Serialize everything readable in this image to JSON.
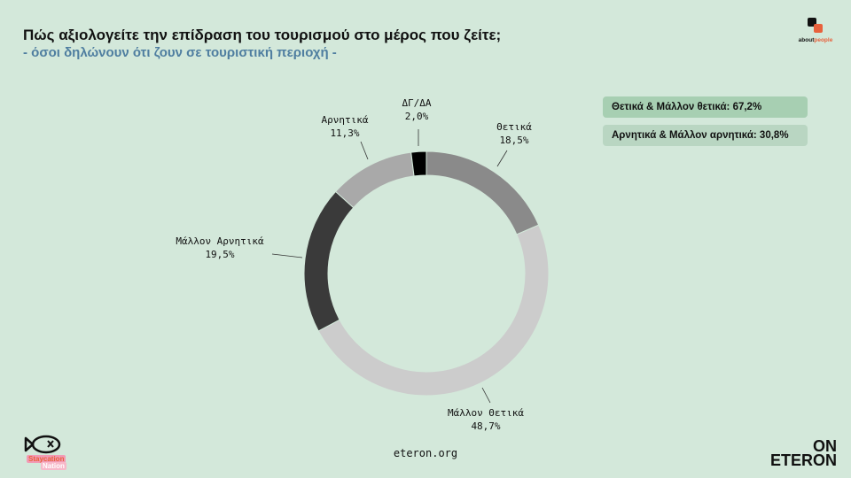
{
  "header": {
    "title": "Πώς αξιολογείτε την επίδραση του τουρισμού στο μέρος που ζείτε;",
    "subtitle": "- όσοι δηλώνουν ότι ζουν σε τουριστική περιοχή -"
  },
  "logos": {
    "aboutpeople_a": "about",
    "aboutpeople_b": "people",
    "on": "ON",
    "eteron": "ETERON",
    "staycation": "Staycation",
    "nation": "Nation"
  },
  "summary": {
    "positive": "Θετικά & Μάλλον θετικά: 67,2%",
    "negative": "Αρνητικά & Μάλλον αρνητικά: 30,8%"
  },
  "footer": {
    "site": "eteron.org"
  },
  "chart_data": {
    "type": "pie",
    "donut": true,
    "slices": [
      {
        "name": "Θετικά",
        "value": 18.5,
        "label": "18,5%",
        "color": "#8a8a8a"
      },
      {
        "name": "Μάλλον Θετικά",
        "value": 48.7,
        "label": "48,7%",
        "color": "#cccccc"
      },
      {
        "name": "Μάλλον Αρνητικά",
        "value": 19.5,
        "label": "19,5%",
        "color": "#3a3a3a"
      },
      {
        "name": "Αρνητικά",
        "value": 11.3,
        "label": "11,3%",
        "color": "#a9a9a9"
      },
      {
        "name": "ΔΓ/ΔΑ",
        "value": 2.0,
        "label": "2,0%",
        "color": "#000000"
      }
    ],
    "legend": "none"
  }
}
